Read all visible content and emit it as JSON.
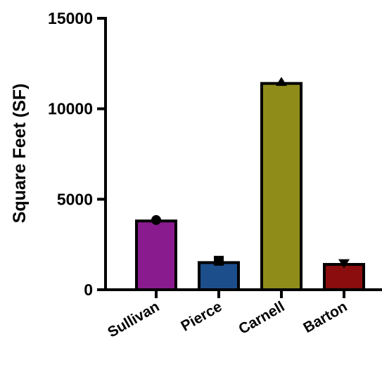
{
  "chart_data": {
    "type": "bar",
    "title": "",
    "xlabel": "",
    "ylabel": "Square Feet (SF)",
    "ylim": [
      0,
      15000
    ],
    "yticks": [
      0,
      5000,
      10000,
      15000
    ],
    "grid": false,
    "categories": [
      "Sullivan",
      "Pierce",
      "Carnell",
      "Barton"
    ],
    "values": [
      3800,
      1500,
      11400,
      1400
    ],
    "colors": [
      "#8a1b8e",
      "#1d4e8c",
      "#8f8c1a",
      "#8b0d0d"
    ],
    "markers": [
      "circle",
      "square",
      "triangle-up",
      "triangle-down"
    ],
    "marker_values": [
      3850,
      1600,
      11450,
      1500
    ]
  }
}
